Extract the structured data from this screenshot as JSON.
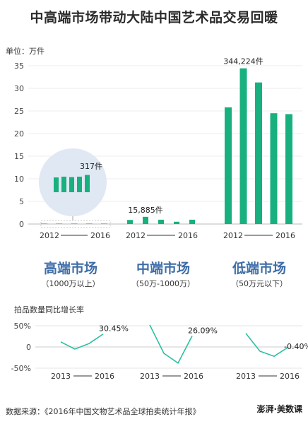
{
  "title": "中高端市场带动大陆中国艺术品交易回暖",
  "footer": "数据来源：《2016年中国文物艺术品全球拍卖统计年报》",
  "logo": "澎湃·美数课",
  "colors": {
    "bar": "#18b07e",
    "line": "#2bbfa0",
    "segment_title": "#3f6ea8",
    "magnifier": "#dfe8f3"
  },
  "chart_data": [
    {
      "type": "bar",
      "ylabel": "单位：万件",
      "ylim": [
        0,
        35
      ],
      "yticks": [
        "0",
        "5",
        "10",
        "15",
        "20",
        "25",
        "30",
        "35"
      ],
      "grid": true,
      "segments": [
        {
          "title": "高端市场",
          "subtitle": "（1000万以上）",
          "x_start": "2012",
          "x_end": "2016",
          "values": [
            0.015,
            0.016,
            0.0155,
            0.0155,
            0.0317
          ],
          "magnified_values": [
            9.5,
            10,
            9.7,
            10,
            11.1
          ],
          "annotation": "317件"
        },
        {
          "title": "中端市场",
          "subtitle": "（50万-1000万）",
          "x_start": "2012",
          "x_end": "2016",
          "values": [
            0.9,
            1.58855,
            0.95,
            0.5,
            0.95
          ],
          "annotation": "15,885件"
        },
        {
          "title": "低端市场",
          "subtitle": "（50万元以下）",
          "x_start": "2012",
          "x_end": "2016",
          "values": [
            25.8,
            34.4224,
            31.3,
            24.5,
            24.3
          ],
          "annotation": "344,224件"
        }
      ]
    },
    {
      "type": "line",
      "title": "拍品数量同比增长率",
      "yticks": [
        "50%",
        "0",
        "-50%"
      ],
      "ylim": [
        -50,
        50
      ],
      "segments": [
        {
          "x_start": "2013",
          "x_end": "2016",
          "values": [
            12,
            -5,
            8,
            30.45
          ],
          "end_label": "30.45%"
        },
        {
          "x_start": "2013",
          "x_end": "2016",
          "values": [
            52,
            -15,
            -38,
            26.09
          ],
          "end_label": "26.09%"
        },
        {
          "x_start": "2013",
          "x_end": "2016",
          "values": [
            32,
            -10,
            -22,
            -0.4
          ],
          "end_label": "-0.40%"
        }
      ]
    }
  ]
}
